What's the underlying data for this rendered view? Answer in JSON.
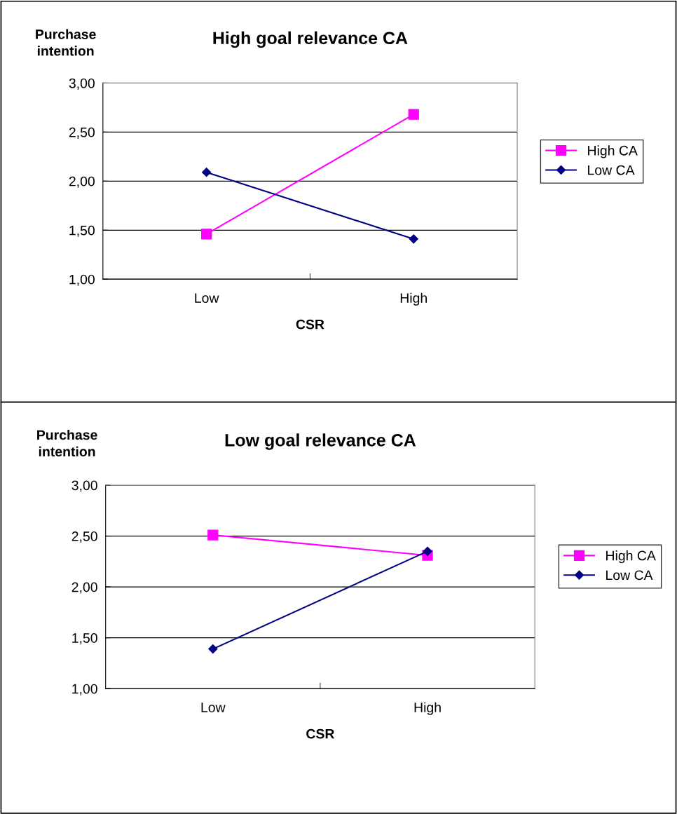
{
  "chart_data": [
    {
      "type": "line",
      "title": "High goal relevance CA",
      "ylabel": "Purchase\nintention",
      "xlabel": "CSR",
      "categories": [
        "Low",
        "High"
      ],
      "series": [
        {
          "name": "High CA",
          "color": "#ff00ff",
          "marker": "square",
          "values": [
            1.46,
            2.68
          ]
        },
        {
          "name": "Low CA",
          "color": "#000080",
          "marker": "diamond",
          "values": [
            2.09,
            1.41
          ]
        }
      ],
      "ylim": [
        1.0,
        3.0
      ],
      "yticks": [
        {
          "value": 1.0,
          "label": "1,00"
        },
        {
          "value": 1.5,
          "label": "1,50"
        },
        {
          "value": 2.0,
          "label": "2,00"
        },
        {
          "value": 2.5,
          "label": "2,50"
        },
        {
          "value": 3.0,
          "label": "3,00"
        }
      ],
      "grid": "y",
      "legend": "right",
      "line_style": "solid"
    },
    {
      "type": "line",
      "title": "Low goal relevance CA",
      "ylabel": "Purchase\nintention",
      "xlabel": "CSR",
      "categories": [
        "Low",
        "High"
      ],
      "series": [
        {
          "name": "High CA",
          "color": "#ff00ff",
          "marker": "square",
          "values": [
            2.51,
            2.31
          ]
        },
        {
          "name": "Low CA",
          "color": "#000080",
          "marker": "diamond",
          "values": [
            1.39,
            2.35
          ]
        }
      ],
      "ylim": [
        1.0,
        3.0
      ],
      "yticks": [
        {
          "value": 1.0,
          "label": "1,00"
        },
        {
          "value": 1.5,
          "label": "1,50"
        },
        {
          "value": 2.0,
          "label": "2,00"
        },
        {
          "value": 2.5,
          "label": "2,50"
        },
        {
          "value": 3.0,
          "label": "3,00"
        }
      ],
      "grid": "y",
      "legend": "right",
      "line_style": "solid"
    }
  ]
}
